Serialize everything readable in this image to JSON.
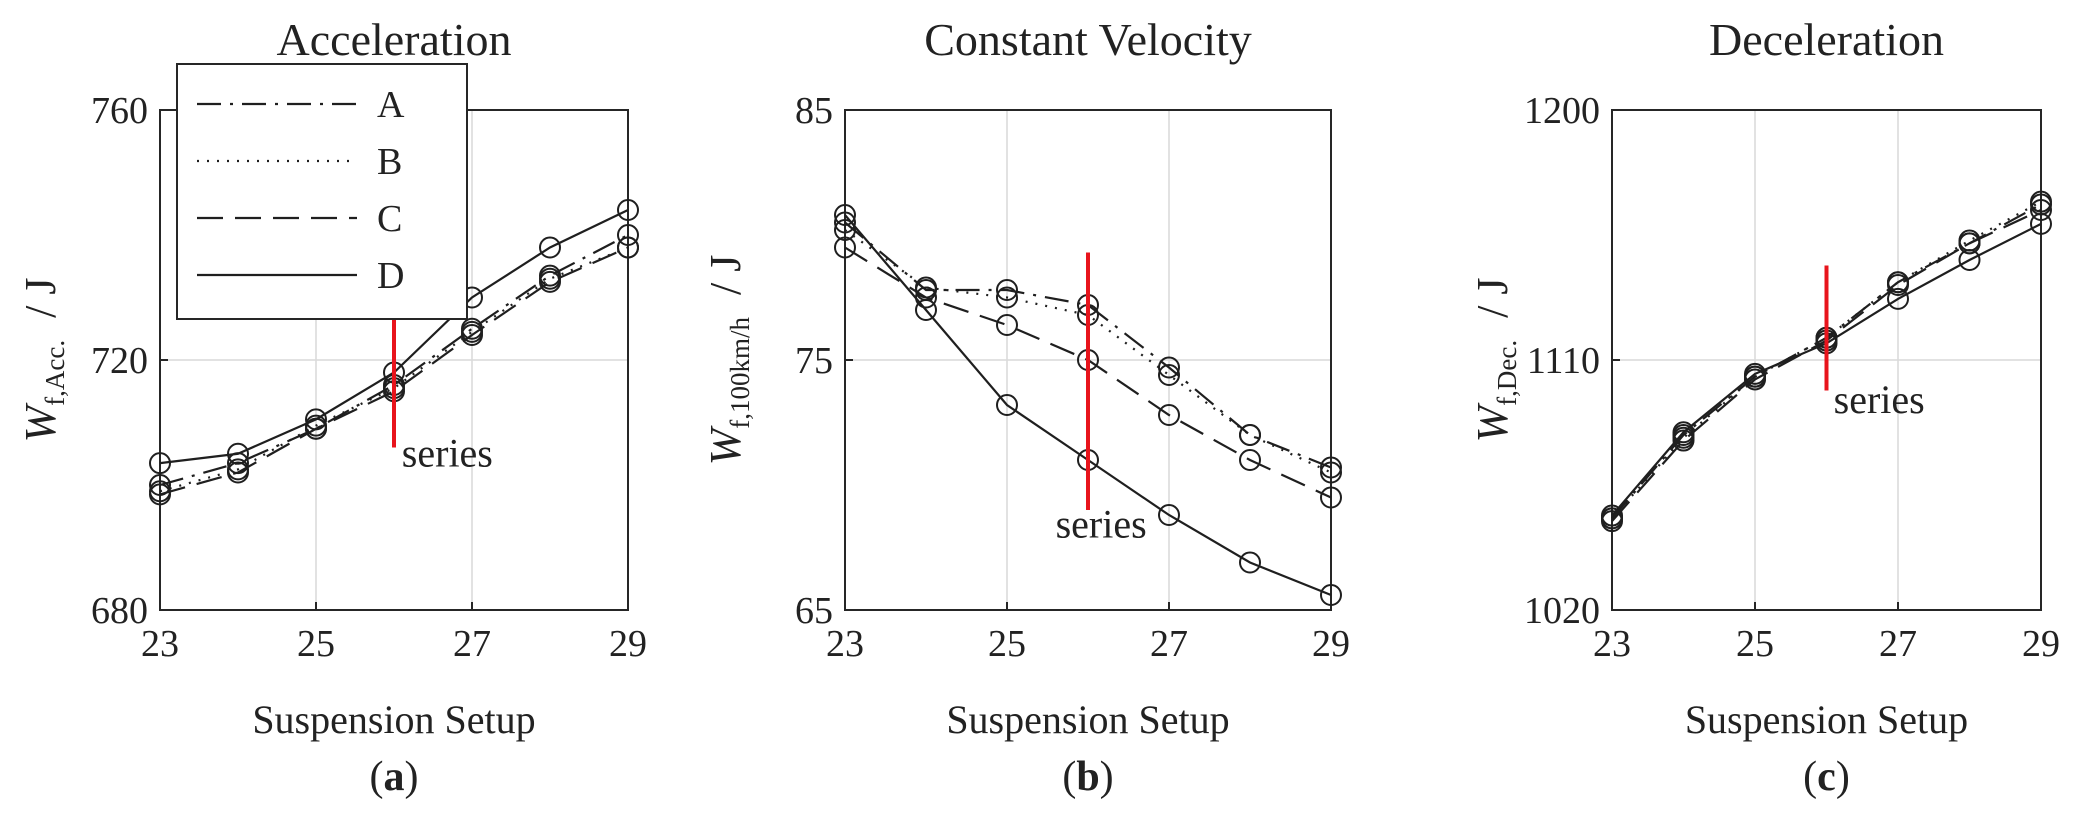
{
  "chart_data": [
    {
      "type": "line",
      "panel_label": "a",
      "title": "Acceleration",
      "xlabel": "Suspension Setup",
      "ylabel_main": "W",
      "ylabel_sub": "f,Acc.",
      "ylabel_unit": "/ J",
      "xlim": [
        23,
        29
      ],
      "ylim": [
        680,
        760
      ],
      "xticks": [
        23,
        25,
        27,
        29
      ],
      "yticks": [
        680,
        720,
        760
      ],
      "grid": true,
      "legend": "top-left",
      "marker_x": 26,
      "marker_y_range": [
        706,
        733
      ],
      "marker_color": "#e8141c",
      "annotation": {
        "text": "series",
        "x": 26.1,
        "y": 703
      },
      "x": [
        23,
        24,
        25,
        26,
        27,
        28,
        29
      ],
      "series": [
        {
          "name": "A",
          "dash": "dashdot",
          "values": [
            700,
            703.5,
            709,
            716,
            725,
            733.5,
            740
          ]
        },
        {
          "name": "B",
          "dash": "dotted",
          "values": [
            699,
            702.5,
            709.5,
            715.5,
            724.5,
            733,
            738
          ]
        },
        {
          "name": "C",
          "dash": "dashed",
          "values": [
            698.5,
            702,
            709,
            715,
            724,
            732.5,
            738
          ]
        },
        {
          "name": "D",
          "dash": "solid",
          "values": [
            703.5,
            705,
            710.5,
            718,
            730,
            738,
            744
          ]
        }
      ]
    },
    {
      "type": "line",
      "panel_label": "b",
      "title": "Constant Velocity",
      "xlabel": "Suspension Setup",
      "ylabel_main": "W",
      "ylabel_sub": "f,100km/h",
      "ylabel_unit": "/ J",
      "xlim": [
        23,
        29
      ],
      "ylim": [
        65,
        85
      ],
      "xticks": [
        23,
        25,
        27,
        29
      ],
      "yticks": [
        65,
        75,
        85
      ],
      "grid": true,
      "legend": "",
      "marker_x": 26,
      "marker_y_range": [
        69,
        79.3
      ],
      "marker_color": "#e8141c",
      "annotation": {
        "text": "series",
        "x": 25.6,
        "y": 67.9
      },
      "x": [
        23,
        24,
        25,
        26,
        27,
        28,
        29
      ],
      "series": [
        {
          "name": "A",
          "dash": "dashdot",
          "values": [
            80.5,
            77.8,
            77.8,
            77.2,
            74.7,
            72.0,
            70.7
          ]
        },
        {
          "name": "B",
          "dash": "dotted",
          "values": [
            80.2,
            77.9,
            77.5,
            76.8,
            74.4,
            72.0,
            70.5
          ]
        },
        {
          "name": "C",
          "dash": "dashed",
          "values": [
            79.5,
            77.5,
            76.4,
            75.0,
            72.8,
            71.0,
            69.5
          ]
        },
        {
          "name": "D",
          "dash": "solid",
          "values": [
            80.8,
            77.0,
            73.2,
            71.0,
            68.8,
            66.9,
            65.6
          ]
        }
      ]
    },
    {
      "type": "line",
      "panel_label": "c",
      "title": "Deceleration",
      "xlabel": "Suspension Setup",
      "ylabel_main": "W",
      "ylabel_sub": "f,Dec.",
      "ylabel_unit": "/ J",
      "xlim": [
        23,
        29
      ],
      "ylim": [
        1020,
        1200
      ],
      "xticks": [
        23,
        25,
        27,
        29
      ],
      "yticks": [
        1020,
        1110,
        1200
      ],
      "grid": true,
      "legend": "",
      "marker_x": 26,
      "marker_y_range": [
        1099,
        1144
      ],
      "marker_color": "#e8141c",
      "annotation": {
        "text": "series",
        "x": 26.1,
        "y": 1091
      },
      "x": [
        23,
        24,
        25,
        26,
        27,
        28,
        29
      ],
      "series": [
        {
          "name": "A",
          "dash": "dashdot",
          "values": [
            1053,
            1083,
            1104,
            1118,
            1138,
            1152,
            1166
          ]
        },
        {
          "name": "B",
          "dash": "dotted",
          "values": [
            1053,
            1082,
            1104,
            1118,
            1138,
            1153,
            1167
          ]
        },
        {
          "name": "C",
          "dash": "dashed",
          "values": [
            1052,
            1081,
            1103,
            1117,
            1137,
            1152,
            1164
          ]
        },
        {
          "name": "D",
          "dash": "solid",
          "values": [
            1054,
            1084,
            1105,
            1116,
            1132,
            1146,
            1159
          ]
        }
      ]
    }
  ]
}
